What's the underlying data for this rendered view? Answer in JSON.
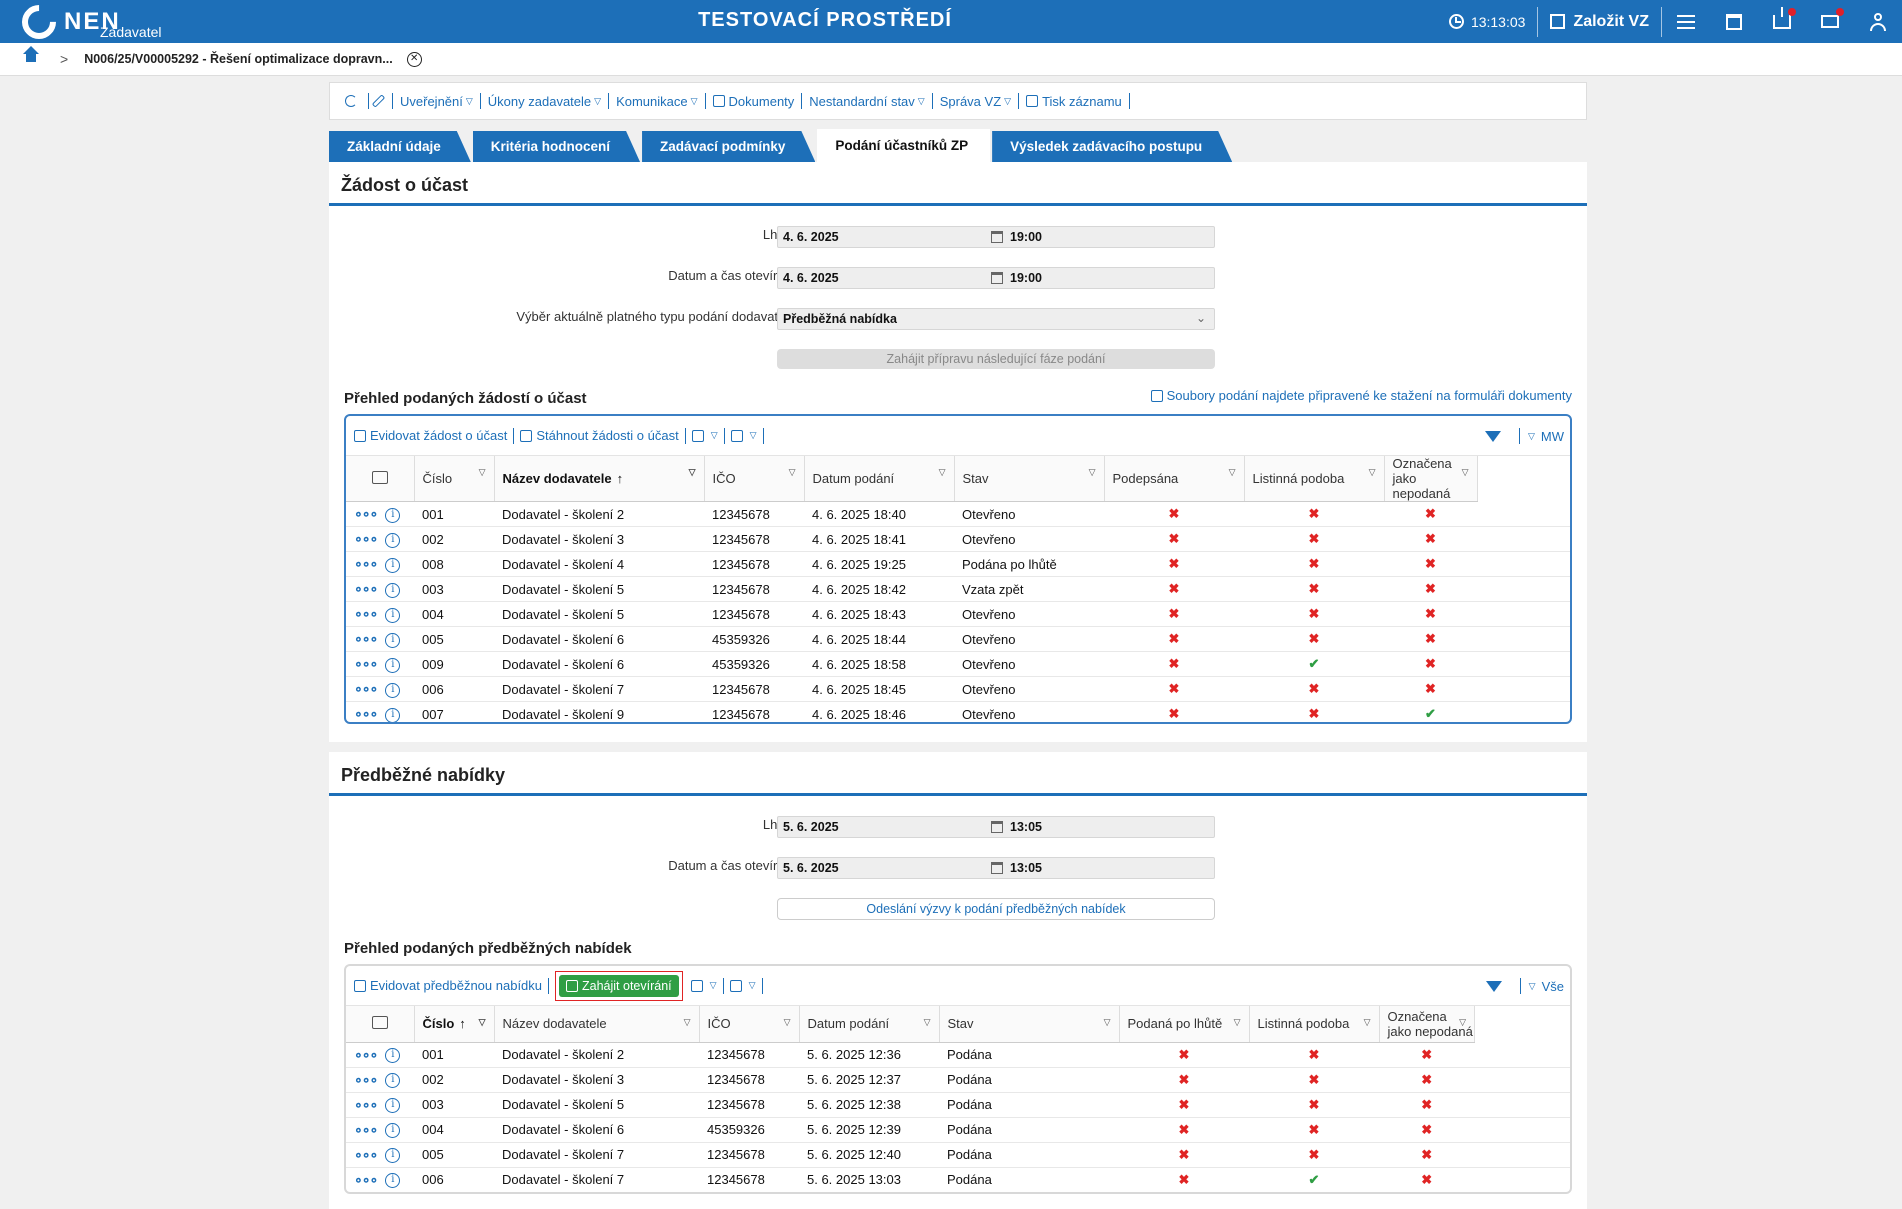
{
  "header": {
    "logo_text": "NEN",
    "logo_sub": "Zadavatel",
    "env_title": "TESTOVACÍ PROSTŘEDÍ",
    "clock": "13:13:03",
    "create_label": "Založit VZ"
  },
  "breadcrumb": {
    "current": "N006/25/V00005292 - Řešení optimalizace dopravn..."
  },
  "actions": [
    {
      "label": "Uveřejnění",
      "caret": true
    },
    {
      "label": "Úkony zadavatele",
      "caret": true
    },
    {
      "label": "Komunikace",
      "caret": true
    },
    {
      "label": "Dokumenty",
      "caret": false
    },
    {
      "label": "Nestandardní stav",
      "caret": true
    },
    {
      "label": "Správa VZ",
      "caret": true
    },
    {
      "label": "Tisk záznamu",
      "caret": false
    }
  ],
  "tabs": [
    {
      "label": "Základní údaje",
      "active": false
    },
    {
      "label": "Kritéria hodnocení",
      "active": false
    },
    {
      "label": "Zadávací podmínky",
      "active": false
    },
    {
      "label": "Podání účastníků ZP",
      "active": true
    },
    {
      "label": "Výsledek zadávacího postupu",
      "active": false
    }
  ],
  "zadost": {
    "title": "Žádost o účast",
    "lhuta_label": "Lhůta:",
    "lhuta_date": "4. 6. 2025",
    "lhuta_time": "19:00",
    "otevirani_label": "Datum a čas otevírání:",
    "otevirani_date": "4. 6. 2025",
    "otevirani_time": "19:00",
    "typ_label": "Výběr aktuálně platného typu podání dodavatele:",
    "typ_value": "Předběžná nabídka",
    "btn_next_phase": "Zahájit přípravu následující fáze podání",
    "overview_title": "Přehled podaných žádostí o účast",
    "files_link": "Soubory podání najdete připravené ke stažení na formuláři dokumenty",
    "tool_add": "Evidovat žádost o účast",
    "tool_download": "Stáhnout žádosti o účast",
    "filter_label": "MW",
    "columns": [
      "Číslo",
      "Název dodavatele",
      "IČO",
      "Datum podání",
      "Stav",
      "Podepsána",
      "Listinná podoba",
      "Označena jako nepodaná"
    ],
    "rows": [
      {
        "cislo": "001",
        "nazev": "Dodavatel - školení 2",
        "ico": "12345678",
        "datum": "4. 6. 2025 18:40",
        "stav": "Otevřeno",
        "f1": false,
        "f2": false,
        "f3": false
      },
      {
        "cislo": "002",
        "nazev": "Dodavatel - školení 3",
        "ico": "12345678",
        "datum": "4. 6. 2025 18:41",
        "stav": "Otevřeno",
        "f1": false,
        "f2": false,
        "f3": false
      },
      {
        "cislo": "008",
        "nazev": "Dodavatel - školení 4",
        "ico": "12345678",
        "datum": "4. 6. 2025 19:25",
        "stav": "Podána po lhůtě",
        "f1": false,
        "f2": false,
        "f3": false
      },
      {
        "cislo": "003",
        "nazev": "Dodavatel - školení 5",
        "ico": "12345678",
        "datum": "4. 6. 2025 18:42",
        "stav": "Vzata zpět",
        "f1": false,
        "f2": false,
        "f3": false
      },
      {
        "cislo": "004",
        "nazev": "Dodavatel - školení 5",
        "ico": "12345678",
        "datum": "4. 6. 2025 18:43",
        "stav": "Otevřeno",
        "f1": false,
        "f2": false,
        "f3": false
      },
      {
        "cislo": "005",
        "nazev": "Dodavatel - školení 6",
        "ico": "45359326",
        "datum": "4. 6. 2025 18:44",
        "stav": "Otevřeno",
        "f1": false,
        "f2": false,
        "f3": false
      },
      {
        "cislo": "009",
        "nazev": "Dodavatel - školení 6",
        "ico": "45359326",
        "datum": "4. 6. 2025 18:58",
        "stav": "Otevřeno",
        "f1": false,
        "f2": true,
        "f3": false
      },
      {
        "cislo": "006",
        "nazev": "Dodavatel - školení 7",
        "ico": "12345678",
        "datum": "4. 6. 2025 18:45",
        "stav": "Otevřeno",
        "f1": false,
        "f2": false,
        "f3": false
      },
      {
        "cislo": "007",
        "nazev": "Dodavatel - školení 9",
        "ico": "12345678",
        "datum": "4. 6. 2025 18:46",
        "stav": "Otevřeno",
        "f1": false,
        "f2": false,
        "f3": true
      }
    ]
  },
  "predbezne": {
    "title": "Předběžné nabídky",
    "lhuta_label": "Lhůta:",
    "lhuta_date": "5. 6. 2025",
    "lhuta_time": "13:05",
    "otevirani_label": "Datum a čas otevírání:",
    "otevirani_date": "5. 6. 2025",
    "otevirani_time": "13:05",
    "btn_send": "Odeslání výzvy k podání předběžných nabídek",
    "overview_title": "Přehled podaných předběžných nabídek",
    "tool_add": "Evidovat předběžnou nabídku",
    "tool_open": "Zahájit otevírání",
    "filter_label": "Vše",
    "columns": [
      "Číslo",
      "Název dodavatele",
      "IČO",
      "Datum podání",
      "Stav",
      "Podaná po lhůtě",
      "Listinná podoba",
      "Označena jako nepodaná"
    ],
    "rows": [
      {
        "cislo": "001",
        "nazev": "Dodavatel - školení 2",
        "ico": "12345678",
        "datum": "5. 6. 2025 12:36",
        "stav": "Podána",
        "f1": false,
        "f2": false,
        "f3": false
      },
      {
        "cislo": "002",
        "nazev": "Dodavatel - školení 3",
        "ico": "12345678",
        "datum": "5. 6. 2025 12:37",
        "stav": "Podána",
        "f1": false,
        "f2": false,
        "f3": false
      },
      {
        "cislo": "003",
        "nazev": "Dodavatel - školení 5",
        "ico": "12345678",
        "datum": "5. 6. 2025 12:38",
        "stav": "Podána",
        "f1": false,
        "f2": false,
        "f3": false
      },
      {
        "cislo": "004",
        "nazev": "Dodavatel - školení 6",
        "ico": "45359326",
        "datum": "5. 6. 2025 12:39",
        "stav": "Podána",
        "f1": false,
        "f2": false,
        "f3": false
      },
      {
        "cislo": "005",
        "nazev": "Dodavatel - školení 7",
        "ico": "12345678",
        "datum": "5. 6. 2025 12:40",
        "stav": "Podána",
        "f1": false,
        "f2": false,
        "f3": false
      },
      {
        "cislo": "006",
        "nazev": "Dodavatel - školení 7",
        "ico": "12345678",
        "datum": "5. 6. 2025 13:03",
        "stav": "Podána",
        "f1": false,
        "f2": true,
        "f3": false
      }
    ]
  }
}
